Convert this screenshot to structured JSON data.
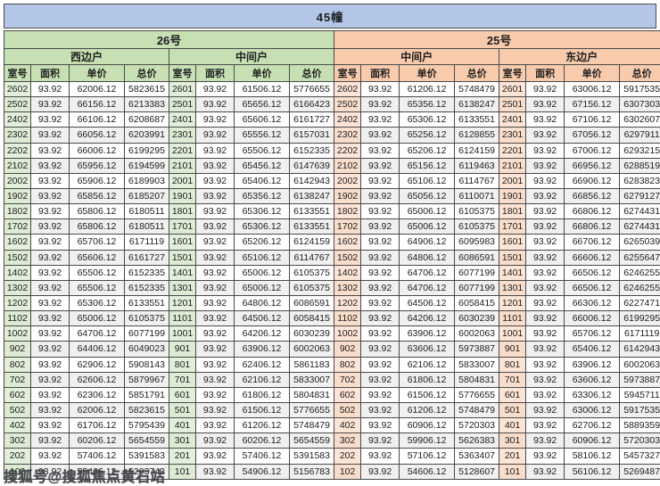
{
  "title": "45幢",
  "watermark": "搜狐号@搜狐焦点黄石站",
  "colors": {
    "title_bg": "#b4c6e7",
    "green_header": "#c6e0b4",
    "green_room_cell": "#e2efda",
    "orange_header": "#f8cbad",
    "orange_room_cell": "#fce4d6",
    "row_stripe": "#f0f0f0",
    "border": "#4a4a4a"
  },
  "chart_data": {
    "type": "table",
    "title": "45幢",
    "building_row": [
      {
        "label": "26号",
        "span": 8,
        "theme": "g"
      },
      {
        "label": "25号",
        "span": 8,
        "theme": "o"
      }
    ],
    "unit_row": [
      {
        "label": "西边户",
        "span": 4,
        "theme": "g"
      },
      {
        "label": "中间户",
        "span": 4,
        "theme": "g"
      },
      {
        "label": "中间户",
        "span": 4,
        "theme": "o"
      },
      {
        "label": "东边户",
        "span": 4,
        "theme": "o"
      }
    ],
    "columns": [
      "室号",
      "面积",
      "单价",
      "总价"
    ],
    "rows": [
      [
        "2602",
        "93.92",
        "62006.12",
        "5823615",
        "2601",
        "93.92",
        "61506.12",
        "5776655",
        "2602",
        "93.92",
        "61206.12",
        "5748479",
        "2601",
        "93.92",
        "63006.12",
        "5917535"
      ],
      [
        "2502",
        "93.92",
        "66156.12",
        "6213383",
        "2501",
        "93.92",
        "65656.12",
        "6166423",
        "2502",
        "93.92",
        "65356.12",
        "6138247",
        "2501",
        "93.92",
        "67156.12",
        "6307303"
      ],
      [
        "2402",
        "93.92",
        "66106.12",
        "6208687",
        "2401",
        "93.92",
        "65606.12",
        "6161727",
        "2402",
        "93.92",
        "65306.12",
        "6133551",
        "2401",
        "93.92",
        "67106.12",
        "6302607"
      ],
      [
        "2302",
        "93.92",
        "66056.12",
        "6203991",
        "2301",
        "93.92",
        "65556.12",
        "6157031",
        "2302",
        "93.92",
        "65256.12",
        "6128855",
        "2301",
        "93.92",
        "67056.12",
        "6297911"
      ],
      [
        "2202",
        "93.92",
        "66006.12",
        "6199295",
        "2201",
        "93.92",
        "65506.12",
        "6152335",
        "2202",
        "93.92",
        "65206.12",
        "6124159",
        "2201",
        "93.92",
        "67006.12",
        "6293215"
      ],
      [
        "2102",
        "93.92",
        "65956.12",
        "6194599",
        "2101",
        "93.92",
        "65456.12",
        "6147639",
        "2102",
        "93.92",
        "65156.12",
        "6119463",
        "2101",
        "93.92",
        "66956.12",
        "6288519"
      ],
      [
        "2002",
        "93.92",
        "65906.12",
        "6189903",
        "2001",
        "93.92",
        "65406.12",
        "6142943",
        "2002",
        "93.92",
        "65106.12",
        "6114767",
        "2001",
        "93.92",
        "66906.12",
        "6283823"
      ],
      [
        "1902",
        "93.92",
        "65856.12",
        "6185207",
        "1901",
        "93.92",
        "65356.12",
        "6138247",
        "1902",
        "93.92",
        "65056.12",
        "6110071",
        "1901",
        "93.92",
        "66856.12",
        "6279127"
      ],
      [
        "1802",
        "93.92",
        "65806.12",
        "6180511",
        "1801",
        "93.92",
        "65306.12",
        "6133551",
        "1802",
        "93.92",
        "65006.12",
        "6105375",
        "1801",
        "93.92",
        "66806.12",
        "6274431"
      ],
      [
        "1702",
        "93.92",
        "65806.12",
        "6180511",
        "1701",
        "93.92",
        "65306.12",
        "6133551",
        "1702",
        "93.92",
        "65006.12",
        "6105375",
        "1701",
        "93.92",
        "66806.12",
        "6274431"
      ],
      [
        "1602",
        "93.92",
        "65706.12",
        "6171119",
        "1601",
        "93.92",
        "65206.12",
        "6124159",
        "1602",
        "93.92",
        "64906.12",
        "6095983",
        "1601",
        "93.92",
        "66706.12",
        "6265039"
      ],
      [
        "1502",
        "93.92",
        "65606.12",
        "6161727",
        "1501",
        "93.92",
        "65106.12",
        "6114767",
        "1502",
        "93.92",
        "64806.12",
        "6086591",
        "1501",
        "93.92",
        "66606.12",
        "6255647"
      ],
      [
        "1402",
        "93.92",
        "65506.12",
        "6152335",
        "1401",
        "93.92",
        "65006.12",
        "6105375",
        "1402",
        "93.92",
        "64706.12",
        "6077199",
        "1401",
        "93.92",
        "66506.12",
        "6246255"
      ],
      [
        "1302",
        "93.92",
        "65506.12",
        "6152335",
        "1301",
        "93.92",
        "65006.12",
        "6105375",
        "1302",
        "93.92",
        "64706.12",
        "6077199",
        "1301",
        "93.92",
        "66506.12",
        "6246255"
      ],
      [
        "1202",
        "93.92",
        "65306.12",
        "6133551",
        "1201",
        "93.92",
        "64806.12",
        "6086591",
        "1202",
        "93.92",
        "64506.12",
        "6058415",
        "1201",
        "93.92",
        "66306.12",
        "6227471"
      ],
      [
        "1102",
        "93.92",
        "65006.12",
        "6105375",
        "1101",
        "93.92",
        "64506.12",
        "6058415",
        "1102",
        "93.92",
        "64206.12",
        "6030239",
        "1101",
        "93.92",
        "66006.12",
        "6199295"
      ],
      [
        "1002",
        "93.92",
        "64706.12",
        "6077199",
        "1001",
        "93.92",
        "64206.12",
        "6030239",
        "1002",
        "93.92",
        "63906.12",
        "6002063",
        "1001",
        "93.92",
        "65706.12",
        "6171119"
      ],
      [
        "902",
        "93.92",
        "64406.12",
        "6049023",
        "901",
        "93.92",
        "63906.12",
        "6002063",
        "902",
        "93.92",
        "63606.12",
        "5973887",
        "901",
        "93.92",
        "65406.12",
        "6142943"
      ],
      [
        "802",
        "93.92",
        "62906.12",
        "5908143",
        "801",
        "93.92",
        "62406.12",
        "5861183",
        "802",
        "93.92",
        "62106.12",
        "5833007",
        "801",
        "93.92",
        "63906.12",
        "6002063"
      ],
      [
        "702",
        "93.92",
        "62606.12",
        "5879967",
        "701",
        "93.92",
        "62106.12",
        "5833007",
        "702",
        "93.92",
        "61806.12",
        "5804831",
        "701",
        "93.92",
        "63606.12",
        "5973887"
      ],
      [
        "602",
        "93.92",
        "62306.12",
        "5851791",
        "601",
        "93.92",
        "61806.12",
        "5804831",
        "602",
        "93.92",
        "61506.12",
        "5776655",
        "601",
        "93.92",
        "63306.12",
        "5945711"
      ],
      [
        "502",
        "93.92",
        "62006.12",
        "5823615",
        "501",
        "93.92",
        "61506.12",
        "5776655",
        "502",
        "93.92",
        "61206.12",
        "5748479",
        "501",
        "93.92",
        "63006.12",
        "5917535"
      ],
      [
        "402",
        "93.92",
        "61706.12",
        "5795439",
        "401",
        "93.92",
        "61206.12",
        "5748479",
        "402",
        "93.92",
        "60906.12",
        "5720303",
        "401",
        "93.92",
        "62706.12",
        "5889359"
      ],
      [
        "302",
        "93.92",
        "60206.12",
        "5654559",
        "301",
        "93.92",
        "60206.12",
        "5654559",
        "302",
        "93.92",
        "59906.12",
        "5626383",
        "301",
        "93.92",
        "60906.12",
        "5720303"
      ],
      [
        "202",
        "93.92",
        "57406.12",
        "5391583",
        "201",
        "93.92",
        "57406.12",
        "5391583",
        "202",
        "93.92",
        "57106.12",
        "5363407",
        "201",
        "93.92",
        "58106.12",
        "5457327"
      ],
      [
        "102",
        "93.92",
        "55406.12",
        "5203743",
        "101",
        "93.92",
        "54906.12",
        "5156783",
        "102",
        "93.92",
        "54606.12",
        "5128607",
        "101",
        "93.92",
        "56106.12",
        "5269487"
      ]
    ]
  }
}
